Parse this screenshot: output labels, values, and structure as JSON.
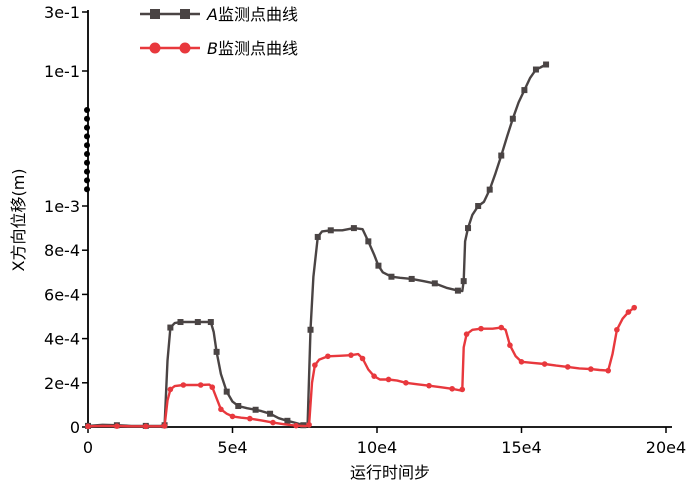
{
  "chart_data": {
    "type": "line",
    "title": "",
    "xlabel": "运行时间步",
    "ylabel": "X方向位移(m)",
    "x_ticks": [
      {
        "value": 0,
        "label": "0"
      },
      {
        "value": 50000,
        "label": "5e4"
      },
      {
        "value": 100000,
        "label": "10e4"
      },
      {
        "value": 150000,
        "label": "15e4"
      },
      {
        "value": 200000,
        "label": "20e4"
      }
    ],
    "y_ticks": [
      {
        "value": 0,
        "label": "0"
      },
      {
        "value": 0.0002,
        "label": "2e-4"
      },
      {
        "value": 0.0004,
        "label": "4e-4"
      },
      {
        "value": 0.0006,
        "label": "6e-4"
      },
      {
        "value": 0.0008,
        "label": "8e-4"
      },
      {
        "value": 0.001,
        "label": "1e-3"
      },
      {
        "value": 0.1,
        "label": "1e-1"
      },
      {
        "value": 0.3,
        "label": "3e-1"
      }
    ],
    "y_axis_note": "broken axis: linear 0–1e-3, compressed 1e-3–3e-1 (dotted break)",
    "xlim": [
      0,
      200000
    ],
    "grid": false,
    "legend_position": "top-left",
    "series": [
      {
        "name": "A监测点曲线",
        "name_parts": {
          "italic": "A",
          "rest": "监测点曲线"
        },
        "color": "#4a4444",
        "marker": "square",
        "points": [
          [
            0,
            5e-06
          ],
          [
            5000,
            1e-05
          ],
          [
            10000,
            8e-06
          ],
          [
            15000,
            5e-06
          ],
          [
            20000,
            5e-06
          ],
          [
            25000,
            5e-06
          ],
          [
            26500,
            8e-06
          ],
          [
            27500,
            0.0003
          ],
          [
            28500,
            0.00045
          ],
          [
            30000,
            0.00047
          ],
          [
            32000,
            0.000475
          ],
          [
            35000,
            0.000475
          ],
          [
            38000,
            0.000475
          ],
          [
            41000,
            0.000475
          ],
          [
            42500,
            0.000475
          ],
          [
            43500,
            0.00043
          ],
          [
            44500,
            0.00034
          ],
          [
            46000,
            0.00024
          ],
          [
            48000,
            0.00016
          ],
          [
            50000,
            0.000115
          ],
          [
            52000,
            9.5e-05
          ],
          [
            55000,
            8.5e-05
          ],
          [
            58000,
            7.8e-05
          ],
          [
            60000,
            7.2e-05
          ],
          [
            63000,
            6e-05
          ],
          [
            66000,
            4e-05
          ],
          [
            69000,
            2.8e-05
          ],
          [
            72000,
            1.8e-05
          ],
          [
            74500,
            8e-06
          ],
          [
            76000,
            1e-05
          ],
          [
            77000,
            0.00044
          ],
          [
            78000,
            0.00068
          ],
          [
            79500,
            0.00086
          ],
          [
            81000,
            0.000885
          ],
          [
            84000,
            0.00089
          ],
          [
            88000,
            0.00089
          ],
          [
            92000,
            0.0009
          ],
          [
            95000,
            0.000895
          ],
          [
            97000,
            0.00084
          ],
          [
            99000,
            0.00078
          ],
          [
            100500,
            0.00073
          ],
          [
            102000,
            0.0007
          ],
          [
            105000,
            0.00068
          ],
          [
            108000,
            0.000675
          ],
          [
            112000,
            0.00067
          ],
          [
            116000,
            0.00066
          ],
          [
            120000,
            0.00065
          ],
          [
            124000,
            0.00063
          ],
          [
            128000,
            0.000617
          ],
          [
            129500,
            0.000615
          ],
          [
            130000,
            0.00066
          ],
          [
            130500,
            0.00084
          ],
          [
            131500,
            0.0009
          ],
          [
            133000,
            0.00096
          ],
          [
            135000,
            0.001
          ],
          [
            137000,
            0.004
          ],
          [
            139000,
            0.013
          ],
          [
            141000,
            0.025
          ],
          [
            143000,
            0.038
          ],
          [
            145000,
            0.052
          ],
          [
            147000,
            0.065
          ],
          [
            149000,
            0.077
          ],
          [
            151000,
            0.086
          ],
          [
            153000,
            0.095
          ],
          [
            155000,
            0.105
          ],
          [
            156500,
            0.112
          ],
          [
            158500,
            0.122
          ]
        ]
      },
      {
        "name": "B监测点曲线",
        "name_parts": {
          "italic": "B",
          "rest": "监测点曲线"
        },
        "color": "#e8383d",
        "marker": "circle",
        "points": [
          [
            0,
            3e-06
          ],
          [
            5000,
            5e-06
          ],
          [
            10000,
            4e-06
          ],
          [
            15000,
            3e-06
          ],
          [
            20000,
            3e-06
          ],
          [
            25000,
            3e-06
          ],
          [
            26500,
            5e-06
          ],
          [
            27500,
            0.00012
          ],
          [
            28500,
            0.00017
          ],
          [
            30000,
            0.000185
          ],
          [
            33000,
            0.00019
          ],
          [
            36000,
            0.00019
          ],
          [
            39000,
            0.00019
          ],
          [
            42000,
            0.000192
          ],
          [
            43000,
            0.00018
          ],
          [
            44500,
            0.00013
          ],
          [
            46000,
            8e-05
          ],
          [
            48000,
            6e-05
          ],
          [
            50000,
            4.8e-05
          ],
          [
            53000,
            4.2e-05
          ],
          [
            56000,
            3.8e-05
          ],
          [
            60000,
            3e-05
          ],
          [
            64000,
            2e-05
          ],
          [
            68000,
            1.2e-05
          ],
          [
            72000,
            6e-06
          ],
          [
            75500,
            4e-06
          ],
          [
            76500,
            1e-05
          ],
          [
            77500,
            0.0002
          ],
          [
            78500,
            0.00028
          ],
          [
            80000,
            0.000305
          ],
          [
            83000,
            0.00032
          ],
          [
            87000,
            0.000322
          ],
          [
            91000,
            0.000325
          ],
          [
            93500,
            0.00033
          ],
          [
            95000,
            0.00031
          ],
          [
            97000,
            0.00026
          ],
          [
            99000,
            0.00023
          ],
          [
            101000,
            0.000215
          ],
          [
            104000,
            0.000215
          ],
          [
            107000,
            0.00021
          ],
          [
            110000,
            0.0002
          ],
          [
            114000,
            0.000193
          ],
          [
            118000,
            0.000187
          ],
          [
            122000,
            0.00018
          ],
          [
            126000,
            0.000173
          ],
          [
            129000,
            0.000165
          ],
          [
            129500,
            0.00017
          ],
          [
            130000,
            0.00036
          ],
          [
            131000,
            0.00042
          ],
          [
            133000,
            0.00044
          ],
          [
            136000,
            0.000445
          ],
          [
            140000,
            0.000445
          ],
          [
            143000,
            0.00045
          ],
          [
            144500,
            0.00044
          ],
          [
            146000,
            0.00037
          ],
          [
            148000,
            0.00032
          ],
          [
            150000,
            0.000295
          ],
          [
            154000,
            0.00029
          ],
          [
            158000,
            0.000285
          ],
          [
            162000,
            0.000278
          ],
          [
            166000,
            0.000272
          ],
          [
            170000,
            0.000265
          ],
          [
            174000,
            0.000262
          ],
          [
            177000,
            0.000258
          ],
          [
            180000,
            0.000255
          ],
          [
            181500,
            0.00033
          ],
          [
            183000,
            0.00044
          ],
          [
            185000,
            0.00049
          ],
          [
            187000,
            0.00052
          ],
          [
            189000,
            0.00054
          ]
        ]
      }
    ]
  }
}
